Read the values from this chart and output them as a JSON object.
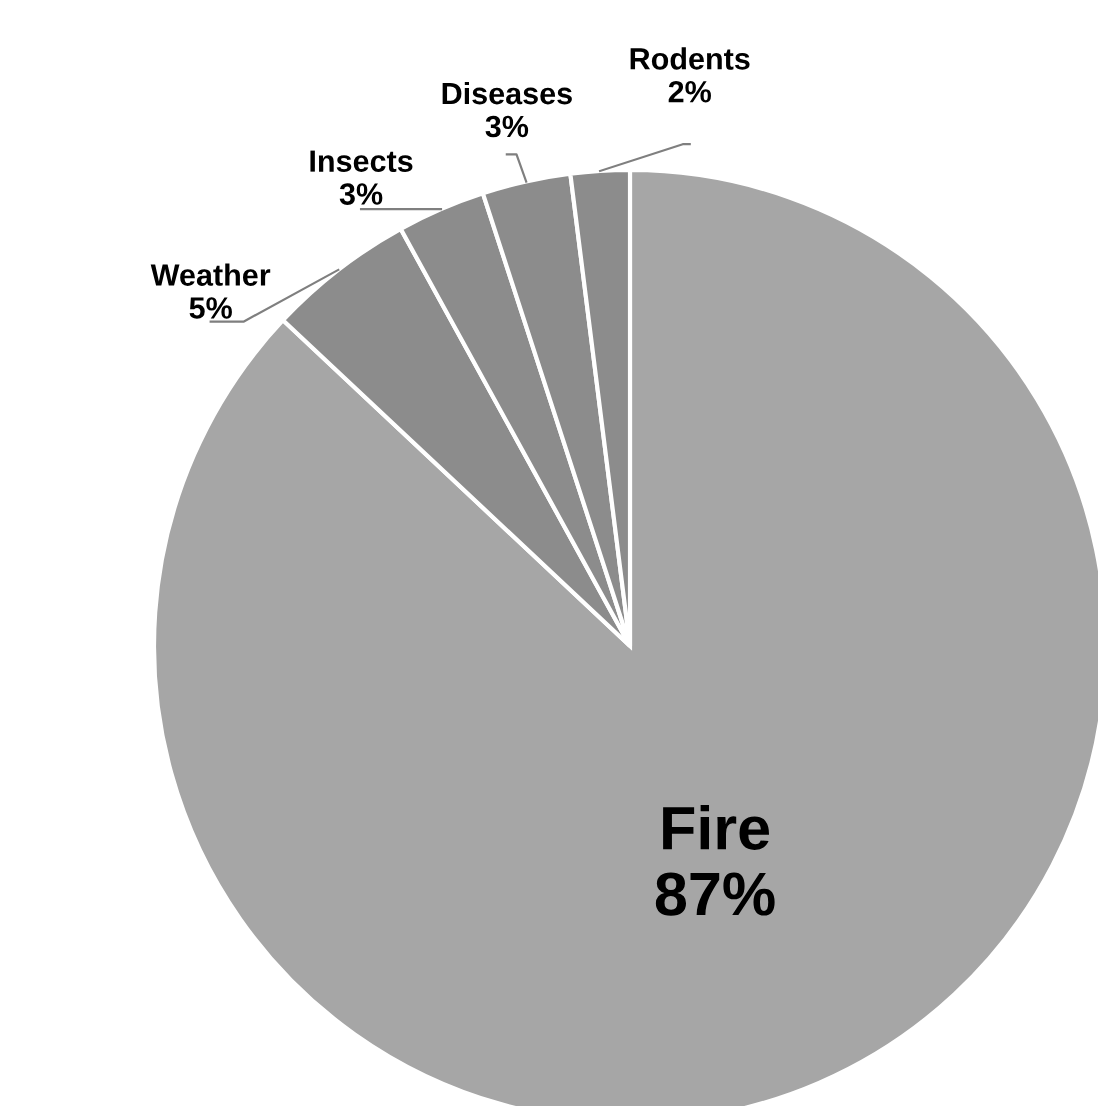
{
  "chart_data": {
    "type": "pie",
    "categories": [
      "Fire",
      "Weather",
      "Insects",
      "Diseases",
      "Rodents"
    ],
    "values": [
      87,
      5,
      3,
      3,
      2
    ],
    "value_labels": [
      "87%",
      "5%",
      "3%",
      "3%",
      "2%"
    ],
    "colors": [
      "#a6a6a6",
      "#8c8c8c",
      "#8c8c8c",
      "#8c8c8c",
      "#8c8c8c"
    ],
    "legend": false
  }
}
